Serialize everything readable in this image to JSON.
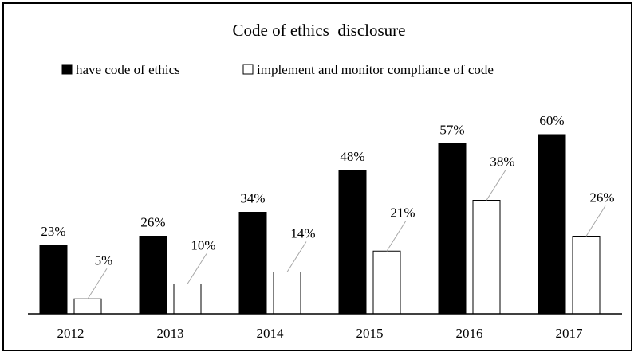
{
  "chart_data": {
    "type": "bar",
    "title": "Code of ethics  disclosure",
    "categories": [
      "2012",
      "2013",
      "2014",
      "2015",
      "2016",
      "2017"
    ],
    "series": [
      {
        "name": "have code of ethics",
        "values": [
          23,
          26,
          34,
          48,
          57,
          60
        ],
        "labels": [
          "23%",
          "26%",
          "34%",
          "48%",
          "57%",
          "60%"
        ],
        "color": "#000000"
      },
      {
        "name": "implement and monitor compliance of code",
        "values": [
          5,
          10,
          14,
          21,
          38,
          26
        ],
        "labels": [
          "5%",
          "10%",
          "14%",
          "21%",
          "38%",
          "26%"
        ],
        "color": "#ffffff"
      }
    ],
    "ylim": [
      0,
      100
    ],
    "grid": false,
    "legend": "top",
    "xlabel": "",
    "ylabel": ""
  }
}
